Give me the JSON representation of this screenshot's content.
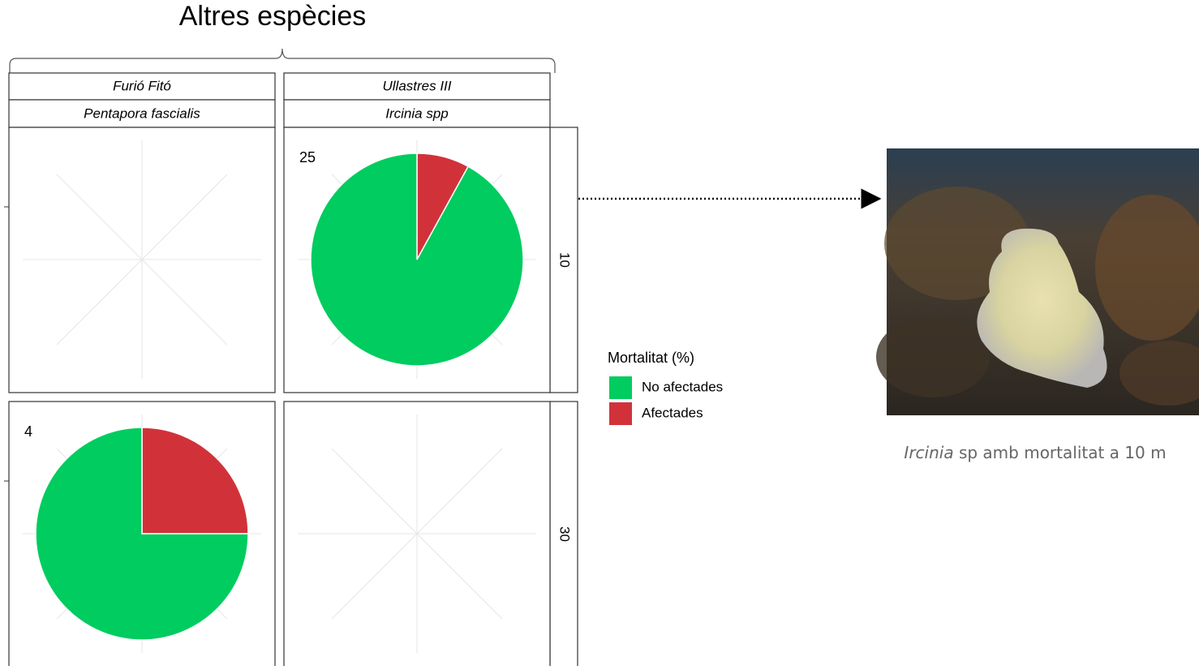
{
  "chart_data": {
    "type": "pie",
    "title": "Altres espècies",
    "columns": [
      {
        "site": "Furió Fitó",
        "species": "Pentapora fascialis"
      },
      {
        "site": "Ullastres III",
        "species": "Ircinia spp"
      }
    ],
    "rows": [
      "10",
      "30"
    ],
    "cells": [
      [
        null,
        {
          "label": 25,
          "values": [
            92,
            8
          ]
        }
      ],
      [
        {
          "label": 4,
          "values": [
            75,
            25
          ]
        },
        null
      ]
    ],
    "legend_title": "Mortalitat (%)",
    "series": [
      {
        "name": "No afectades",
        "color": "#00cc5f"
      },
      {
        "name": "Afectades",
        "color": "#d13239"
      }
    ]
  },
  "caption": {
    "italic": "Ircinia",
    "text": "sp amb mortalitat a 10 m"
  }
}
